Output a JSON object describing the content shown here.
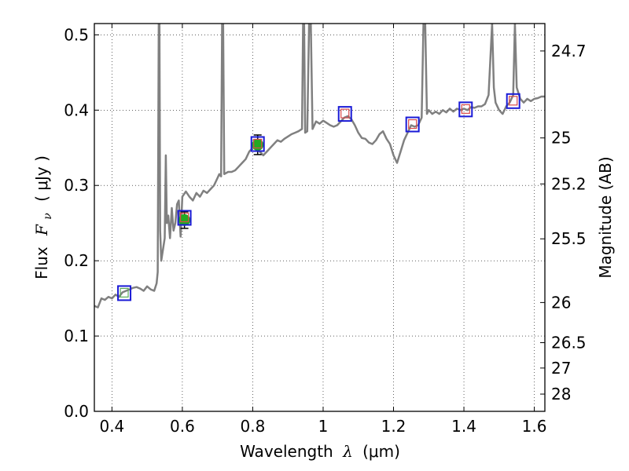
{
  "chart_data": {
    "type": "line",
    "xlabel": "Wavelength",
    "xlabel_symbol": "λ",
    "xlabel_unit": "(μm)",
    "ylabel_prefix": "Flux",
    "ylabel_symbol": "F",
    "ylabel_subscript": "ν",
    "ylabel_unit": "( μJy )",
    "right_ylabel": "Magnitude (AB)",
    "xlim": [
      0.35,
      1.63
    ],
    "ylim": [
      0.0,
      0.515
    ],
    "x_ticks": [
      0.4,
      0.6,
      0.8,
      1.0,
      1.2,
      1.4,
      1.6
    ],
    "x_tick_labels": [
      "0.4",
      "0.6",
      "0.8",
      "1",
      "1.2",
      "1.4",
      "1.6"
    ],
    "y_ticks": [
      0.0,
      0.1,
      0.2,
      0.3,
      0.4,
      0.5
    ],
    "y_tick_labels": [
      "0.0",
      "0.1",
      "0.2",
      "0.3",
      "0.4",
      "0.5"
    ],
    "right_ticks": [
      {
        "label": "24.7",
        "flux": 0.4786
      },
      {
        "label": "25",
        "flux": 0.3631
      },
      {
        "label": "25.2",
        "flux": 0.302
      },
      {
        "label": "25.5",
        "flux": 0.2291
      },
      {
        "label": "26",
        "flux": 0.1445
      },
      {
        "label": "26.5",
        "flux": 0.0912
      },
      {
        "label": "27",
        "flux": 0.0575
      },
      {
        "label": "28",
        "flux": 0.0229
      }
    ],
    "grid": true,
    "spectrum_color": "#808080",
    "spectrum": [
      [
        0.35,
        0.14
      ],
      [
        0.36,
        0.138
      ],
      [
        0.37,
        0.15
      ],
      [
        0.38,
        0.148
      ],
      [
        0.39,
        0.152
      ],
      [
        0.4,
        0.15
      ],
      [
        0.41,
        0.155
      ],
      [
        0.42,
        0.152
      ],
      [
        0.43,
        0.158
      ],
      [
        0.44,
        0.16
      ],
      [
        0.45,
        0.162
      ],
      [
        0.46,
        0.164
      ],
      [
        0.47,
        0.165
      ],
      [
        0.48,
        0.163
      ],
      [
        0.49,
        0.16
      ],
      [
        0.5,
        0.166
      ],
      [
        0.51,
        0.162
      ],
      [
        0.52,
        0.16
      ],
      [
        0.527,
        0.17
      ],
      [
        0.53,
        0.185
      ],
      [
        0.533,
        0.515
      ],
      [
        0.535,
        0.515
      ],
      [
        0.537,
        0.24
      ],
      [
        0.54,
        0.2
      ],
      [
        0.545,
        0.215
      ],
      [
        0.55,
        0.23
      ],
      [
        0.553,
        0.34
      ],
      [
        0.556,
        0.25
      ],
      [
        0.56,
        0.26
      ],
      [
        0.565,
        0.23
      ],
      [
        0.57,
        0.27
      ],
      [
        0.575,
        0.24
      ],
      [
        0.58,
        0.25
      ],
      [
        0.585,
        0.275
      ],
      [
        0.59,
        0.28
      ],
      [
        0.595,
        0.232
      ],
      [
        0.6,
        0.285
      ],
      [
        0.61,
        0.292
      ],
      [
        0.62,
        0.285
      ],
      [
        0.63,
        0.28
      ],
      [
        0.64,
        0.29
      ],
      [
        0.65,
        0.285
      ],
      [
        0.66,
        0.293
      ],
      [
        0.67,
        0.29
      ],
      [
        0.68,
        0.295
      ],
      [
        0.69,
        0.3
      ],
      [
        0.7,
        0.31
      ],
      [
        0.705,
        0.315
      ],
      [
        0.71,
        0.312
      ],
      [
        0.713,
        0.515
      ],
      [
        0.716,
        0.515
      ],
      [
        0.719,
        0.315
      ],
      [
        0.73,
        0.318
      ],
      [
        0.74,
        0.318
      ],
      [
        0.75,
        0.32
      ],
      [
        0.76,
        0.325
      ],
      [
        0.77,
        0.33
      ],
      [
        0.78,
        0.335
      ],
      [
        0.79,
        0.345
      ],
      [
        0.8,
        0.35
      ],
      [
        0.81,
        0.35
      ],
      [
        0.82,
        0.345
      ],
      [
        0.83,
        0.34
      ],
      [
        0.84,
        0.345
      ],
      [
        0.85,
        0.35
      ],
      [
        0.86,
        0.355
      ],
      [
        0.87,
        0.36
      ],
      [
        0.88,
        0.358
      ],
      [
        0.89,
        0.362
      ],
      [
        0.9,
        0.365
      ],
      [
        0.91,
        0.368
      ],
      [
        0.92,
        0.37
      ],
      [
        0.93,
        0.372
      ],
      [
        0.94,
        0.375
      ],
      [
        0.943,
        0.515
      ],
      [
        0.946,
        0.515
      ],
      [
        0.949,
        0.37
      ],
      [
        0.955,
        0.372
      ],
      [
        0.96,
        0.515
      ],
      [
        0.965,
        0.515
      ],
      [
        0.97,
        0.375
      ],
      [
        0.98,
        0.385
      ],
      [
        0.99,
        0.382
      ],
      [
        1.0,
        0.386
      ],
      [
        1.01,
        0.383
      ],
      [
        1.02,
        0.38
      ],
      [
        1.03,
        0.378
      ],
      [
        1.04,
        0.38
      ],
      [
        1.05,
        0.385
      ],
      [
        1.06,
        0.39
      ],
      [
        1.07,
        0.392
      ],
      [
        1.08,
        0.388
      ],
      [
        1.09,
        0.38
      ],
      [
        1.1,
        0.37
      ],
      [
        1.11,
        0.363
      ],
      [
        1.12,
        0.362
      ],
      [
        1.13,
        0.357
      ],
      [
        1.14,
        0.355
      ],
      [
        1.15,
        0.36
      ],
      [
        1.16,
        0.368
      ],
      [
        1.17,
        0.372
      ],
      [
        1.18,
        0.362
      ],
      [
        1.19,
        0.355
      ],
      [
        1.2,
        0.34
      ],
      [
        1.21,
        0.33
      ],
      [
        1.22,
        0.345
      ],
      [
        1.23,
        0.36
      ],
      [
        1.24,
        0.37
      ],
      [
        1.25,
        0.38
      ],
      [
        1.26,
        0.378
      ],
      [
        1.27,
        0.38
      ],
      [
        1.28,
        0.39
      ],
      [
        1.285,
        0.515
      ],
      [
        1.29,
        0.515
      ],
      [
        1.295,
        0.395
      ],
      [
        1.3,
        0.4
      ],
      [
        1.31,
        0.395
      ],
      [
        1.32,
        0.398
      ],
      [
        1.33,
        0.395
      ],
      [
        1.34,
        0.4
      ],
      [
        1.35,
        0.397
      ],
      [
        1.36,
        0.402
      ],
      [
        1.37,
        0.398
      ],
      [
        1.38,
        0.402
      ],
      [
        1.39,
        0.4
      ],
      [
        1.4,
        0.402
      ],
      [
        1.41,
        0.4
      ],
      [
        1.42,
        0.404
      ],
      [
        1.43,
        0.403
      ],
      [
        1.44,
        0.405
      ],
      [
        1.45,
        0.405
      ],
      [
        1.46,
        0.408
      ],
      [
        1.47,
        0.42
      ],
      [
        1.48,
        0.515
      ],
      [
        1.485,
        0.43
      ],
      [
        1.49,
        0.41
      ],
      [
        1.5,
        0.4
      ],
      [
        1.51,
        0.395
      ],
      [
        1.52,
        0.405
      ],
      [
        1.53,
        0.41
      ],
      [
        1.54,
        0.42
      ],
      [
        1.545,
        0.515
      ],
      [
        1.55,
        0.43
      ],
      [
        1.56,
        0.415
      ],
      [
        1.57,
        0.41
      ],
      [
        1.58,
        0.415
      ],
      [
        1.59,
        0.412
      ],
      [
        1.6,
        0.415
      ],
      [
        1.61,
        0.416
      ],
      [
        1.62,
        0.418
      ],
      [
        1.63,
        0.418
      ]
    ],
    "photometry": [
      {
        "x": 0.606,
        "y": 0.254,
        "err": 0.011
      },
      {
        "x": 0.814,
        "y": 0.354,
        "err": 0.013
      }
    ],
    "model_points": [
      {
        "x": 0.435,
        "y": 0.157
      },
      {
        "x": 0.606,
        "y": 0.257
      },
      {
        "x": 0.814,
        "y": 0.355
      },
      {
        "x": 1.062,
        "y": 0.395
      },
      {
        "x": 1.254,
        "y": 0.381
      },
      {
        "x": 1.405,
        "y": 0.401
      },
      {
        "x": 1.54,
        "y": 0.412
      }
    ],
    "colors": {
      "photometry": "#22aa22",
      "model_box_outer": "#1a1ad6",
      "model_box_inner": "#d94a4a",
      "model_box_inner_first": "#5aa85a"
    }
  }
}
